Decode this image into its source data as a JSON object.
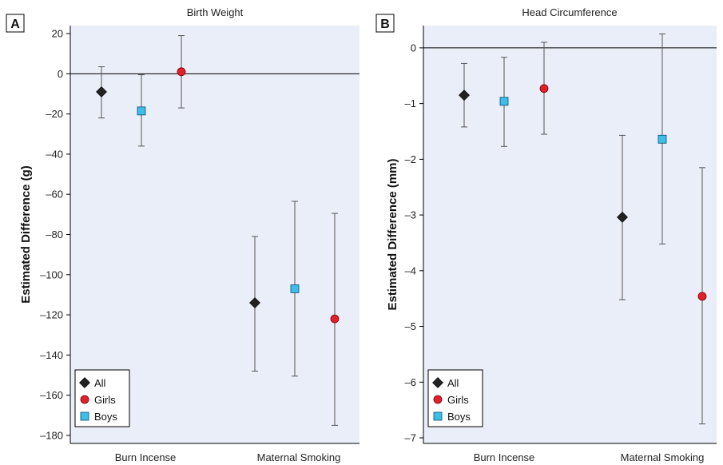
{
  "colors": {
    "panel_bg": "#eaeef8",
    "all": "#222222",
    "girls": "#e0202a",
    "boys": "#3dbde8",
    "errorbar": "#555555",
    "zero_line": "#000000"
  },
  "legend": {
    "items": [
      {
        "label": "All",
        "marker": "diamond",
        "color": "#222222"
      },
      {
        "label": "Girls",
        "marker": "circle",
        "color": "#e0202a"
      },
      {
        "label": "Boys",
        "marker": "square",
        "color": "#3dbde8"
      }
    ],
    "placement": "bottom-left"
  },
  "chart_data": [
    {
      "panel": "A",
      "type": "scatter",
      "title": "Birth Weight",
      "xlabel": "",
      "ylabel": "Estimated Difference (g)",
      "categories": [
        "Burn Incense",
        "Maternal Smoking"
      ],
      "ylim": [
        -184,
        24
      ],
      "yticks": [
        20,
        0,
        -20,
        -40,
        -60,
        -80,
        -100,
        -120,
        -140,
        -160,
        -180
      ],
      "ytick_labels": [
        "20",
        "0",
        "–20",
        "–40",
        "–60",
        "–80",
        "–100",
        "–120",
        "–140",
        "–160",
        "–180"
      ],
      "zero_line": true,
      "series": [
        {
          "name": "All",
          "values": [
            -9,
            -114
          ],
          "lower": [
            -22,
            -148
          ],
          "upper": [
            3.5,
            -81
          ]
        },
        {
          "name": "Boys",
          "values": [
            -18.5,
            -107
          ],
          "lower": [
            -36,
            -150.5
          ],
          "upper": [
            -0.5,
            -63.5
          ]
        },
        {
          "name": "Girls",
          "values": [
            1,
            -122
          ],
          "lower": [
            -17,
            -175
          ],
          "upper": [
            19,
            -69.5
          ]
        }
      ]
    },
    {
      "panel": "B",
      "type": "scatter",
      "title": "Head Circumference",
      "xlabel": "",
      "ylabel": "Estimated Difference (mm)",
      "categories": [
        "Burn Incense",
        "Maternal Smoking"
      ],
      "ylim": [
        -7.1,
        0.4
      ],
      "yticks": [
        0,
        -1,
        -2,
        -3,
        -4,
        -5,
        -6,
        -7
      ],
      "ytick_labels": [
        "0",
        "–1",
        "–2",
        "–3",
        "–4",
        "–5",
        "–6",
        "–7"
      ],
      "zero_line": true,
      "series": [
        {
          "name": "All",
          "values": [
            -0.85,
            -3.04
          ],
          "lower": [
            -1.42,
            -4.52
          ],
          "upper": [
            -0.28,
            -1.57
          ]
        },
        {
          "name": "Boys",
          "values": [
            -0.96,
            -1.64
          ],
          "lower": [
            -1.77,
            -3.52
          ],
          "upper": [
            -0.17,
            0.25
          ]
        },
        {
          "name": "Girls",
          "values": [
            -0.73,
            -4.46
          ],
          "lower": [
            -1.55,
            -6.75
          ],
          "upper": [
            0.1,
            -2.15
          ]
        }
      ]
    }
  ]
}
